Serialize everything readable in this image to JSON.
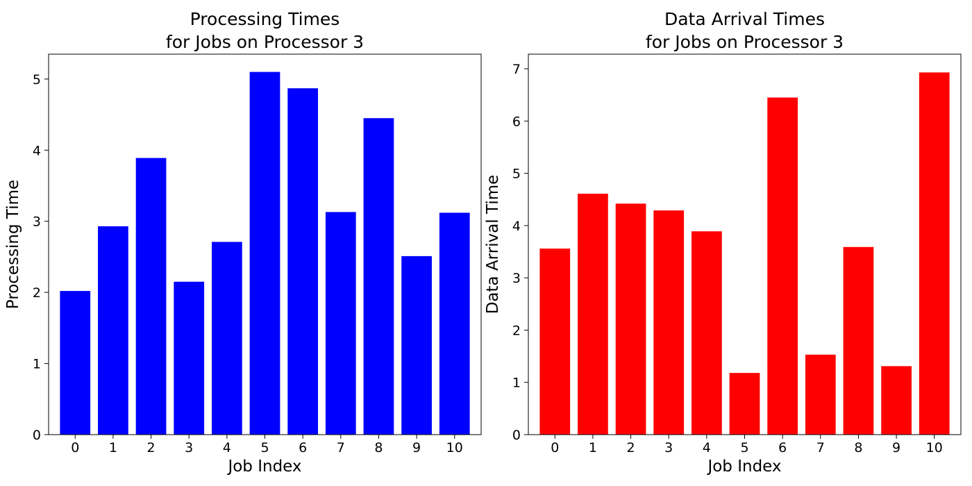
{
  "chart_data": [
    {
      "type": "bar",
      "title": [
        "Processing Times",
        "for Jobs on Processor 3"
      ],
      "xlabel": "Job Index",
      "ylabel": "Processing Time",
      "categories": [
        "0",
        "1",
        "2",
        "3",
        "4",
        "5",
        "6",
        "7",
        "8",
        "9",
        "10"
      ],
      "values": [
        2.02,
        2.93,
        3.89,
        2.15,
        2.71,
        5.1,
        4.87,
        3.13,
        4.45,
        2.51,
        3.12
      ],
      "color": "#0000ff",
      "ylim": [
        0,
        5.35
      ],
      "yticks": [
        "0",
        "1",
        "2",
        "3",
        "4",
        "5"
      ],
      "grid": false
    },
    {
      "type": "bar",
      "title": [
        "Data Arrival Times",
        "for Jobs on Processor 3"
      ],
      "xlabel": "Job Index",
      "ylabel": "Data Arrival Time",
      "categories": [
        "0",
        "1",
        "2",
        "3",
        "4",
        "5",
        "6",
        "7",
        "8",
        "9",
        "10"
      ],
      "values": [
        3.56,
        4.61,
        4.42,
        4.29,
        3.89,
        1.18,
        6.45,
        1.53,
        3.59,
        1.31,
        6.93
      ],
      "color": "#ff0000",
      "ylim": [
        0,
        7.28
      ],
      "yticks": [
        "0",
        "1",
        "2",
        "3",
        "4",
        "5",
        "6",
        "7"
      ],
      "grid": false
    }
  ]
}
